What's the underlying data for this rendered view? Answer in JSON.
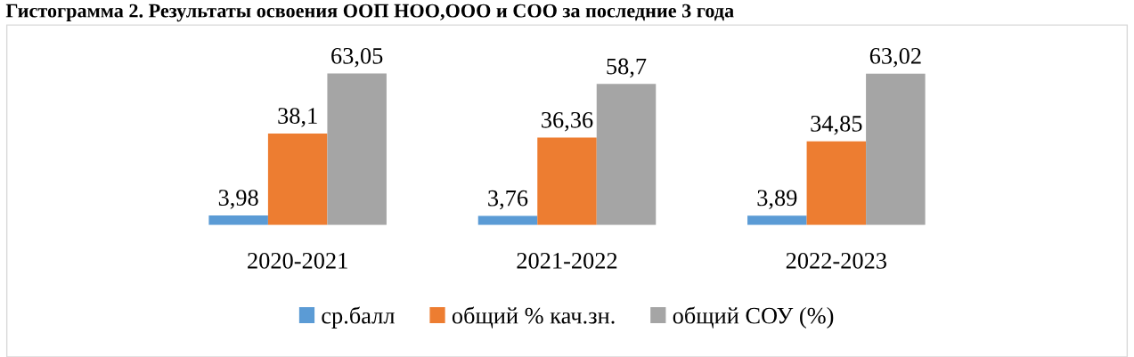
{
  "chart_data": {
    "type": "bar",
    "title": "Гистограмма 2. Результаты освоения ООП НОО,ООО и СОО за последние 3 года",
    "categories": [
      "2020-2021",
      "2021-2022",
      "2022-2023"
    ],
    "series": [
      {
        "name": "ср.балл",
        "color": "#5b9bd5",
        "values": [
          3.98,
          3.76,
          3.89
        ],
        "value_labels": [
          "3,98",
          "3,76",
          "3,89"
        ]
      },
      {
        "name": "общий % кач.зн.",
        "color": "#ed7d31",
        "values": [
          38.1,
          36.36,
          34.85
        ],
        "value_labels": [
          "38,1",
          "36,36",
          "34,85"
        ]
      },
      {
        "name": "общий СОУ (%)",
        "color": "#a5a5a5",
        "values": [
          63.05,
          58.7,
          63.02
        ],
        "value_labels": [
          "63,05",
          "58,7",
          "63,02"
        ]
      }
    ],
    "legend": "bottom",
    "grid": false
  }
}
